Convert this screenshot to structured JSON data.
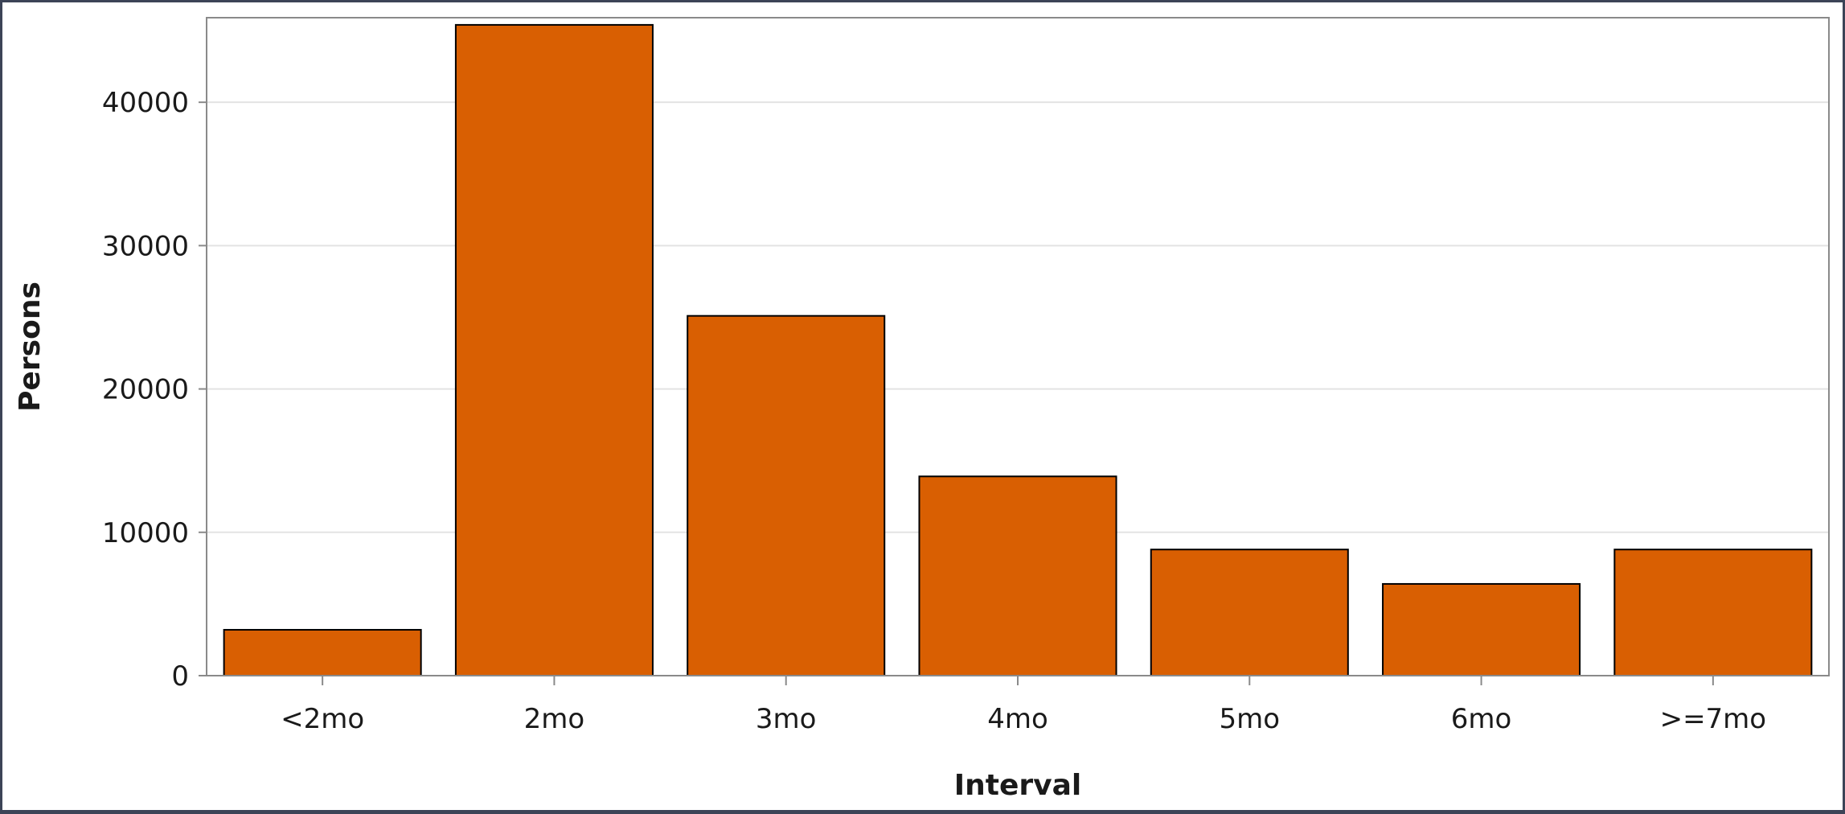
{
  "chart_data": {
    "type": "bar",
    "categories": [
      "<2mo",
      "2mo",
      "3mo",
      "4mo",
      "5mo",
      "6mo",
      ">=7mo"
    ],
    "values": [
      3200,
      45400,
      25100,
      13900,
      8800,
      6400,
      8800
    ],
    "xlabel": "Interval",
    "ylabel": "Persons",
    "ylim": [
      0,
      45900
    ],
    "yticks": [
      0,
      10000,
      20000,
      30000,
      40000
    ],
    "grid": true,
    "bar_color": "#d95f02",
    "bar_edge_color": "#000000"
  }
}
